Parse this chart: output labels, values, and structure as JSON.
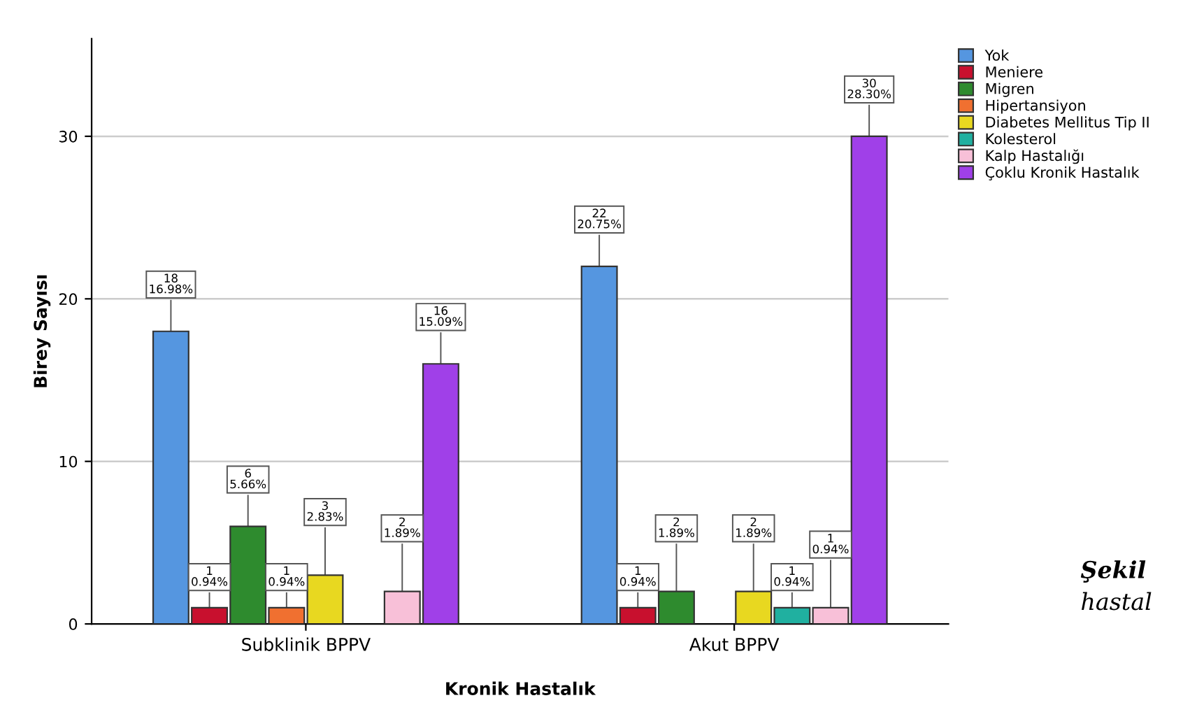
{
  "chart_data": {
    "type": "bar",
    "xlabel": "Kronik Hastalık",
    "ylabel": "Birey Sayısı",
    "categories": [
      "Subklinik BPPV",
      "Akut BPPV"
    ],
    "series": [
      {
        "name": "Yok",
        "color": "#5596e0",
        "values": [
          18,
          22
        ],
        "value_labels": [
          "18\n16.98%",
          "22\n20.75%"
        ]
      },
      {
        "name": "Meniere",
        "color": "#c8102e",
        "values": [
          1,
          1
        ],
        "value_labels": [
          "1\n0.94%",
          "1\n0.94%"
        ]
      },
      {
        "name": "Migren",
        "color": "#2e8b2e",
        "values": [
          6,
          2
        ],
        "value_labels": [
          "6\n5.66%",
          "2\n1.89%"
        ]
      },
      {
        "name": "Hipertansiyon",
        "color": "#f07030",
        "values": [
          1,
          null
        ],
        "value_labels": [
          "1\n0.94%",
          null
        ]
      },
      {
        "name": "Diabetes Mellitus Tip II",
        "color": "#e8d820",
        "values": [
          3,
          2
        ],
        "value_labels": [
          "3\n2.83%",
          "2\n1.89%"
        ]
      },
      {
        "name": "Kolesterol",
        "color": "#20b0a0",
        "values": [
          null,
          1
        ],
        "value_labels": [
          null,
          "1\n0.94%"
        ]
      },
      {
        "name": "Kalp Hastalığı",
        "color": "#f8c0d8",
        "values": [
          2,
          1
        ],
        "value_labels": [
          "2\n1.89%",
          "1\n0.94%"
        ]
      },
      {
        "name": "Çoklu Kronik Hastalık",
        "color": "#a040e8",
        "values": [
          16,
          30
        ],
        "value_labels": [
          "16\n15.09%",
          "30\n28.30%"
        ]
      }
    ],
    "ylim": [
      0,
      36
    ],
    "yticks": [
      0,
      10,
      20,
      30
    ],
    "grid": "y",
    "legend": "top right",
    "annotations": [
      "Şekil",
      "hastal"
    ]
  }
}
